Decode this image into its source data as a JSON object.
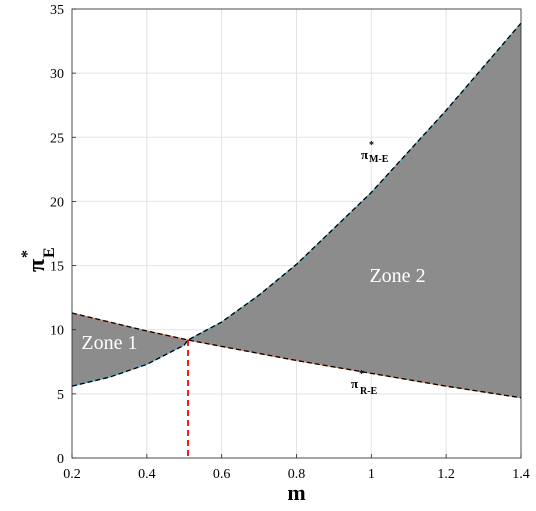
{
  "chart_data": {
    "type": "area",
    "xlabel": "m",
    "ylabel": {
      "symbol": "π",
      "superscript": "*",
      "subscript": "E"
    },
    "xlim": [
      0.2,
      1.4
    ],
    "ylim": [
      0,
      35
    ],
    "x_ticks": [
      "0.2",
      "0.4",
      "0.6",
      "0.8",
      "1",
      "1.2",
      "1.4"
    ],
    "y_ticks": [
      "0",
      "5",
      "10",
      "15",
      "20",
      "25",
      "30",
      "35"
    ],
    "grid": true,
    "fill_color": "#8c8c8c",
    "series": [
      {
        "name": "π*M-E",
        "label": {
          "symbol": "π",
          "superscript": "*",
          "subscript": "M-E"
        },
        "x": [
          0.2,
          0.3,
          0.4,
          0.5,
          0.51,
          0.6,
          0.7,
          0.8,
          0.9,
          1.0,
          1.1,
          1.2,
          1.3,
          1.4
        ],
        "y": [
          5.6,
          6.3,
          7.3,
          8.8,
          9.2,
          10.6,
          12.7,
          15.1,
          17.9,
          20.7,
          23.9,
          27.1,
          30.5,
          33.9
        ]
      },
      {
        "name": "π*R-E",
        "label": {
          "symbol": "π",
          "superscript": "*",
          "subscript": "R-E"
        },
        "x": [
          0.2,
          0.4,
          0.51,
          0.6,
          0.8,
          1.0,
          1.2,
          1.4
        ],
        "y": [
          11.3,
          9.9,
          9.2,
          8.7,
          7.6,
          6.6,
          5.6,
          4.7
        ]
      }
    ],
    "vline": {
      "x": 0.51,
      "y_top": 9.2,
      "color": "#ff0000",
      "style": "dashed"
    },
    "annotations": [
      {
        "text": "Zone 1",
        "x": 0.3,
        "y": 8.5
      },
      {
        "text": "Zone 2",
        "x": 1.07,
        "y": 13.7
      }
    ]
  }
}
